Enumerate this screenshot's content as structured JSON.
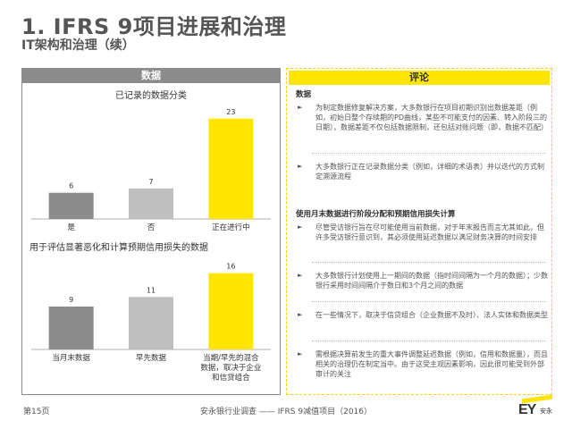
{
  "header": {
    "title": "1. IFRS 9项目进展和治理",
    "subtitle": "IT架构和治理（续）"
  },
  "left": {
    "header": "数据",
    "chart1_title": "已记录的数据分类",
    "chart2_title": "用于评估显著恶化和计算预期信用损失的数据"
  },
  "chart_data": [
    {
      "type": "bar",
      "title": "已记录的数据分类",
      "categories": [
        "是",
        "否",
        "正在进行中"
      ],
      "values": [
        6,
        7,
        23
      ],
      "colors": [
        "#8c8c8c",
        "#bfbfbf",
        "#ffe600"
      ],
      "ylim": [
        0,
        25
      ]
    },
    {
      "type": "bar",
      "title": "用于评估显著恶化和计算预期信用损失的数据",
      "categories": [
        "当月末数据",
        "早先数据",
        "当期/早先的混合数据，取决于企业和信贷组合"
      ],
      "values": [
        9,
        11,
        16
      ],
      "colors": [
        "#8c8c8c",
        "#bfbfbf",
        "#ffe600"
      ],
      "ylim": [
        0,
        18
      ]
    }
  ],
  "right": {
    "header": "评论",
    "section1_title": "数据",
    "section1_bullets": [
      "为制定数据修复解决方案，大多数银行在项目初期识别出数据差距（例如，初始日整个存续期的PD曲线，某些不可能支付的因素、转入阶段三的日期），数据差距不仅包括数据限制，还包括对账问题（即，数据不匹配）",
      "大多数银行正在记录数据分类（例如，详细的术语表）并以迭代的方式制定溯源流程"
    ],
    "section2_title": "使用月末数据进行阶段分配和预期信用损失计算",
    "section2_bullets": [
      "尽管受访银行旨在尽可能使用当前数据，对于年末报告而言尤其如此，但许多受访银行意识到，其必须使用延迟数据以满足财务决算的时间安排",
      "大多数银行计划使用上一期间的数据（指时间间隔为一个月的数据）；少数银行采用时间间隔介于数日和3个月之间的数据",
      "在一些情况下，取决于信贷组合（企业数据不及时）、法人实体和数据类型",
      "需根据决算前发生的重大事件调整延迟数据（例如，信用和数据量），而且相关的治理仍在制定当中。由于这受主观因素影响，因此很可能受到外部审计的关注"
    ]
  },
  "footer": {
    "page": "第15页",
    "center": "安永银行业调查 —— IFRS 9减值项目（2016）",
    "logo_text": "EY",
    "logo_cn": "安永"
  }
}
